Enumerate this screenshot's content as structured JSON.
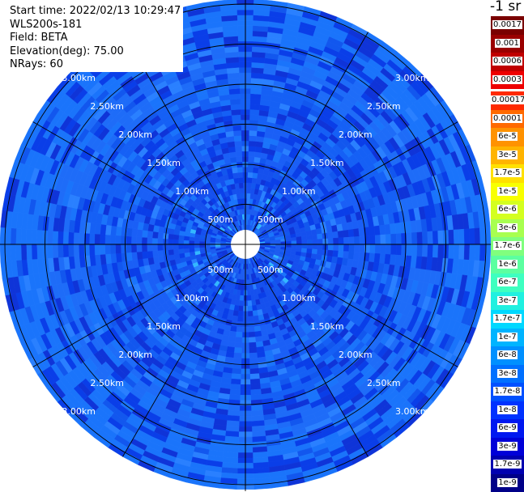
{
  "header": {
    "start_time": "Start time: 2022/02/13 10:29:47",
    "instrument": "WLS200s-181",
    "field": "Field: BETA",
    "elevation": "Elevation(deg): 75.00",
    "nrays": "NRays: 60"
  },
  "colorbar": {
    "unit": "-1 sr",
    "labels_high": [
      "0.0017",
      "0.001",
      "0.0006",
      "0.0003"
    ],
    "colors_high": [
      "#7a0000",
      "#9a0000",
      "#c00000",
      "#ee0000"
    ],
    "labels": [
      "0.00017",
      "0.0001",
      "6e-5",
      "3e-5",
      "1.7e-5",
      "1e-5",
      "6e-6",
      "3e-6",
      "1.7e-6",
      "1e-6",
      "6e-7",
      "3e-7",
      "1.7e-7",
      "1e-7",
      "6e-8",
      "3e-8",
      "1.7e-8",
      "1e-8",
      "6e-9",
      "3e-9",
      "1.7e-9",
      "1e-9"
    ],
    "colors": [
      "#ff2a00",
      "#ff6a00",
      "#ff9200",
      "#ffb400",
      "#ffe000",
      "#f8ff00",
      "#d4ff20",
      "#a8ff50",
      "#80ff7e",
      "#5cffa0",
      "#3effc0",
      "#20f0e0",
      "#00d8ff",
      "#00b4ff",
      "#0090ff",
      "#0070ff",
      "#0050ff",
      "#0032ff",
      "#0018f0",
      "#0000d8",
      "#0000b0",
      "#000088"
    ]
  },
  "ppi": {
    "range_labels": [
      "500m",
      "1.00km",
      "1.50km",
      "2.00km",
      "2.50km",
      "3.00km"
    ],
    "ring_colors": [
      "#1c5cf0",
      "#1550ee",
      "#1a5ff6",
      "#1560f5",
      "#1e6cf8",
      "#1a74fb"
    ],
    "spoke_count": 12
  }
}
